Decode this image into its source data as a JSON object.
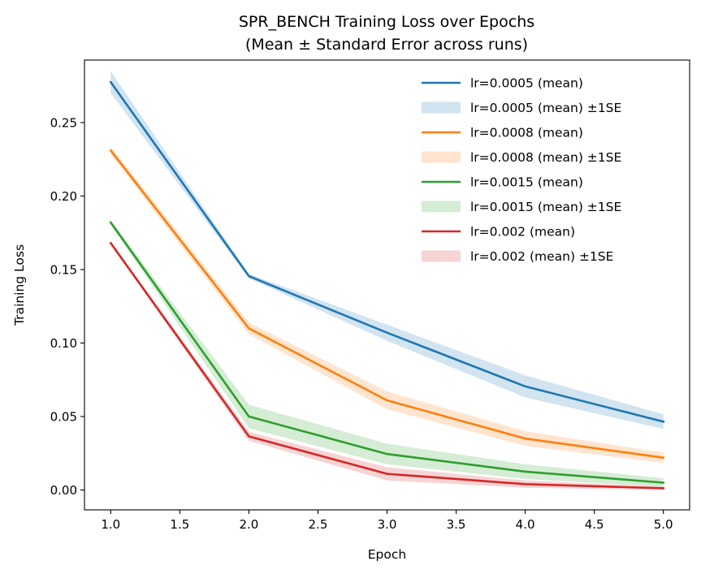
{
  "chart_data": {
    "type": "line",
    "title": [
      "SPR_BENCH Training Loss over Epochs",
      "(Mean ± Standard Error across runs)"
    ],
    "xlabel": "Epoch",
    "ylabel": "Training Loss",
    "x": [
      1,
      2,
      3,
      4,
      5
    ],
    "xlim": [
      0.81,
      5.19
    ],
    "ylim": [
      -0.0135,
      0.2925
    ],
    "xticks": [
      1.0,
      1.5,
      2.0,
      2.5,
      3.0,
      3.5,
      4.0,
      4.5,
      5.0
    ],
    "xtick_labels": [
      "1.0",
      "1.5",
      "2.0",
      "2.5",
      "3.0",
      "3.5",
      "4.0",
      "4.5",
      "5.0"
    ],
    "yticks": [
      0.0,
      0.05,
      0.1,
      0.15,
      0.2,
      0.25
    ],
    "ytick_labels": [
      "0.00",
      "0.05",
      "0.10",
      "0.15",
      "0.20",
      "0.25"
    ],
    "grid": false,
    "legend_position": "top-right",
    "series": [
      {
        "name": "lr=0.0005 (mean)",
        "band_name": "lr=0.0005 (mean) ±1SE",
        "color": "#1f77b4",
        "values": [
          0.2775,
          0.1455,
          0.107,
          0.0705,
          0.0465
        ],
        "se": [
          0.0075,
          0.0015,
          0.0055,
          0.0075,
          0.005
        ]
      },
      {
        "name": "lr=0.0008 (mean)",
        "band_name": "lr=0.0008 (mean) ±1SE",
        "color": "#ff7f0e",
        "values": [
          0.231,
          0.11,
          0.061,
          0.035,
          0.022
        ],
        "se": [
          0.0025,
          0.004,
          0.006,
          0.005,
          0.0035
        ]
      },
      {
        "name": "lr=0.0015 (mean)",
        "band_name": "lr=0.0015 (mean) ±1SE",
        "color": "#2ca02c",
        "values": [
          0.182,
          0.05,
          0.0245,
          0.0125,
          0.005
        ],
        "se": [
          0.0015,
          0.008,
          0.007,
          0.005,
          0.003
        ]
      },
      {
        "name": "lr=0.002 (mean)",
        "band_name": "lr=0.002 (mean) ±1SE",
        "color": "#d62728",
        "values": [
          0.168,
          0.0365,
          0.011,
          0.004,
          0.0012
        ],
        "se": [
          0.001,
          0.003,
          0.0045,
          0.0025,
          0.001
        ]
      }
    ]
  }
}
